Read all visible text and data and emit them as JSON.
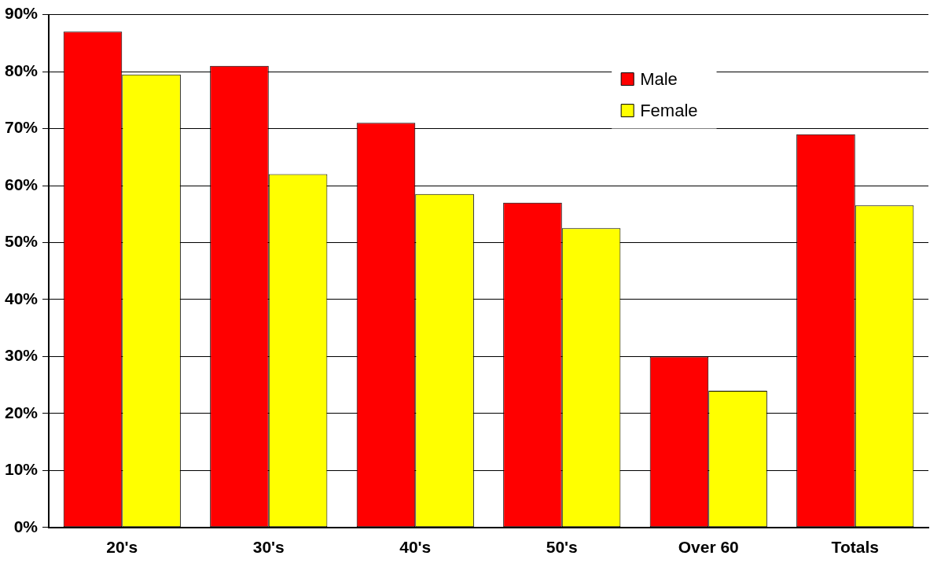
{
  "chart_data": {
    "type": "bar",
    "categories": [
      "20's",
      "30's",
      "40's",
      "50's",
      "Over 60",
      "Totals"
    ],
    "series": [
      {
        "name": "Male",
        "color": "#ff0000",
        "values": [
          87,
          81,
          71,
          57,
          30,
          69
        ]
      },
      {
        "name": "Female",
        "color": "#ffff00",
        "values": [
          79.5,
          62,
          58.5,
          52.5,
          24,
          56.5
        ]
      }
    ],
    "ylim": [
      0,
      90
    ],
    "yticks": [
      {
        "value": 0,
        "label": "0%"
      },
      {
        "value": 10,
        "label": "10%"
      },
      {
        "value": 20,
        "label": "20%"
      },
      {
        "value": 30,
        "label": "30%"
      },
      {
        "value": 40,
        "label": "40%"
      },
      {
        "value": 50,
        "label": "50%"
      },
      {
        "value": 60,
        "label": "60%"
      },
      {
        "value": 70,
        "label": "70%"
      },
      {
        "value": 80,
        "label": "80%"
      },
      {
        "value": 90,
        "label": "90%"
      }
    ],
    "grid": "y",
    "legend": "top right"
  }
}
